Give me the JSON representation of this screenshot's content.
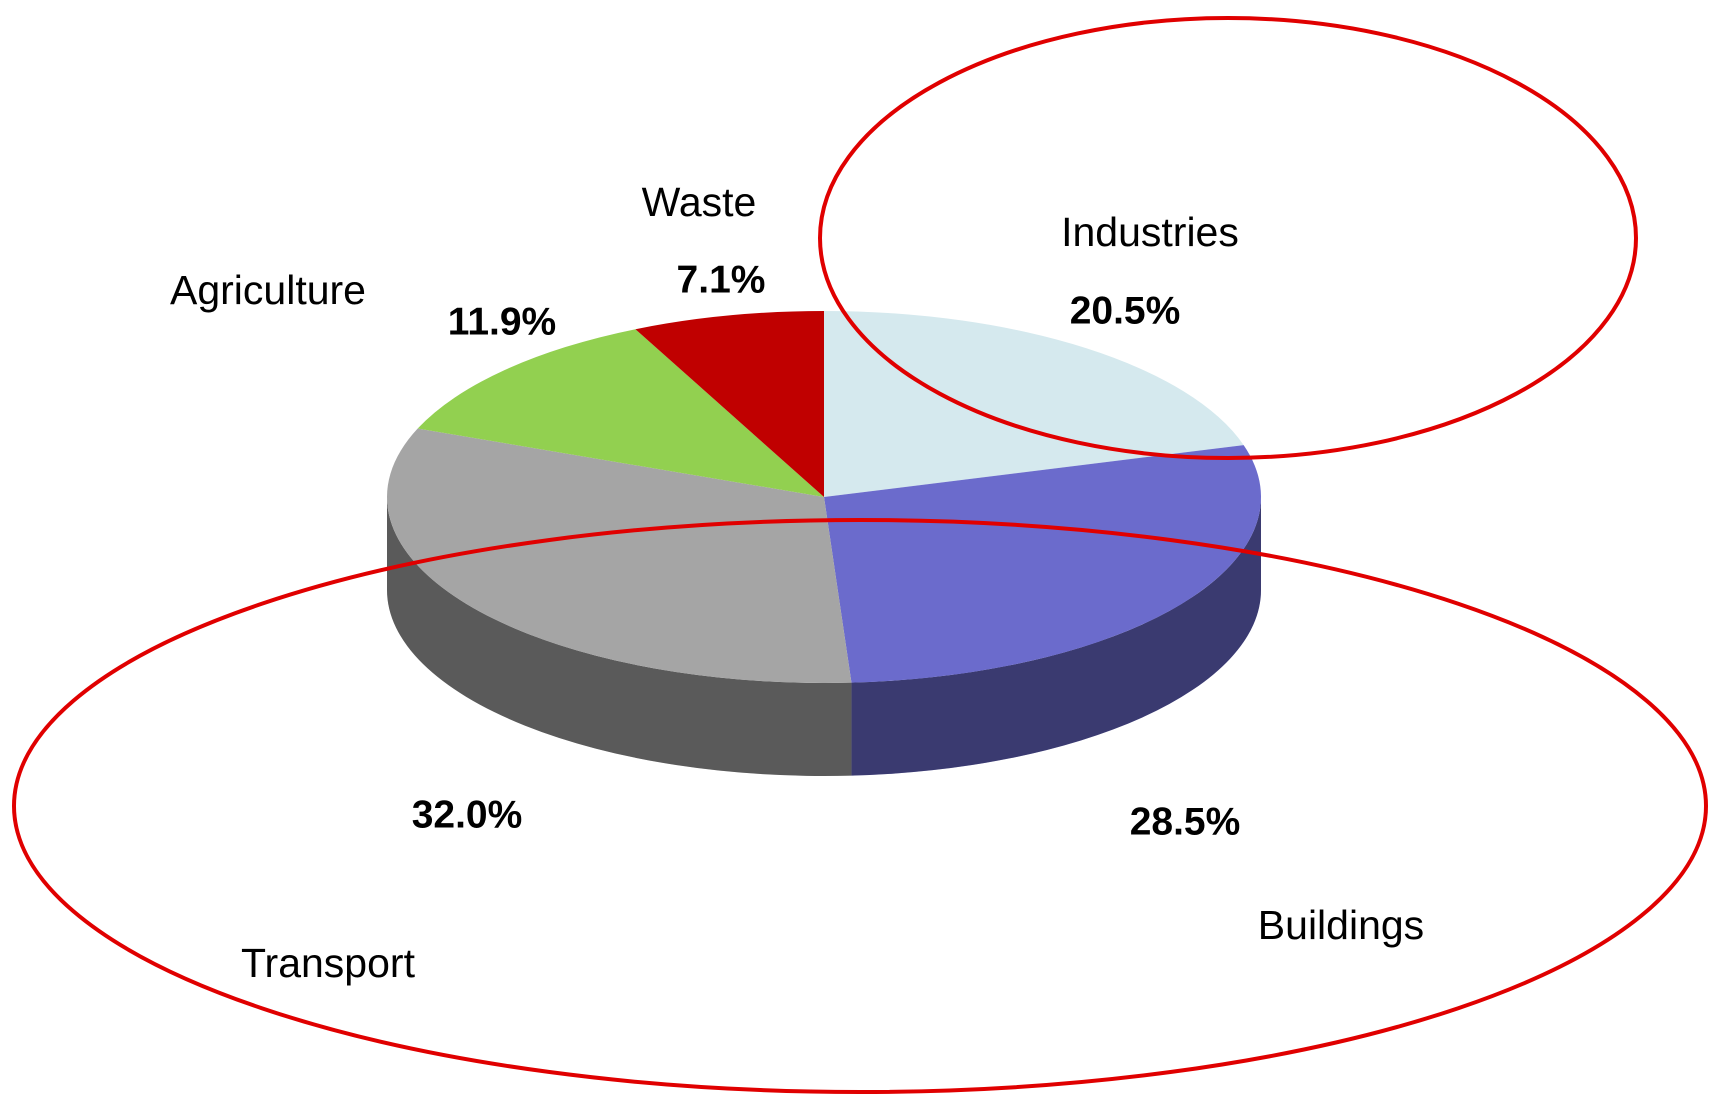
{
  "chart_data": {
    "type": "pie3d",
    "categories": [
      "Industries",
      "Buildings",
      "Transport",
      "Agriculture",
      "Waste"
    ],
    "values": [
      20.5,
      28.5,
      32.0,
      11.9,
      7.1
    ],
    "value_labels": [
      "20.5%",
      "28.5%",
      "32.0%",
      "11.9%",
      "7.1%"
    ],
    "colors": [
      "#d5e9ee",
      "#6b6bcc",
      "#a5a5a5",
      "#92d050",
      "#c00000"
    ]
  }
}
